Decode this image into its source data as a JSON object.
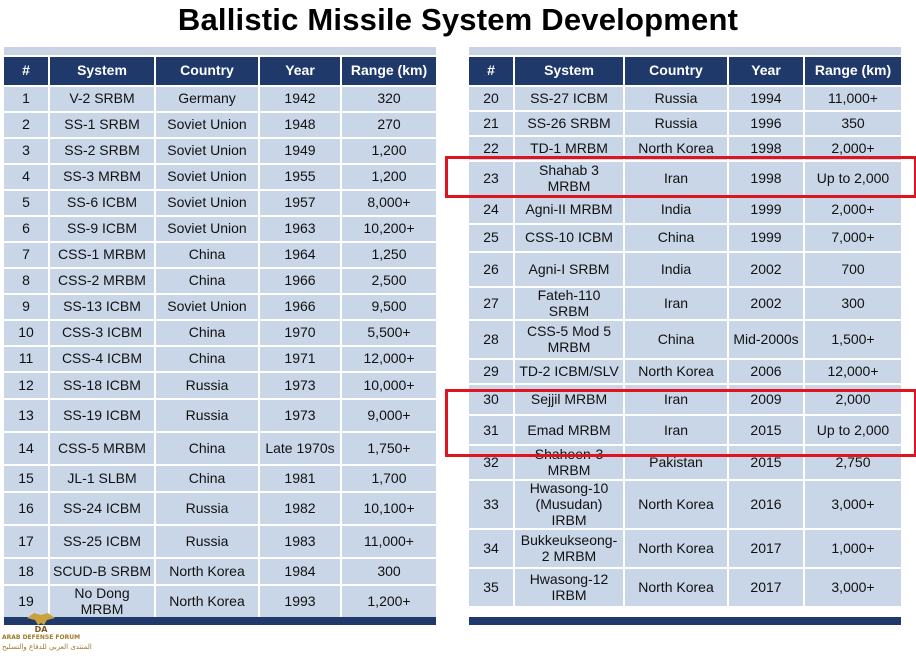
{
  "title": "Ballistic Missile System Development",
  "headers": [
    "#",
    "System",
    "Country",
    "Year",
    "Range (km)"
  ],
  "left_table": [
    [
      "1",
      "V-2 SRBM",
      "Germany",
      "1942",
      "320"
    ],
    [
      "2",
      "SS-1 SRBM",
      "Soviet Union",
      "1948",
      "270"
    ],
    [
      "3",
      "SS-2 SRBM",
      "Soviet Union",
      "1949",
      "1,200"
    ],
    [
      "4",
      "SS-3 MRBM",
      "Soviet Union",
      "1955",
      "1,200"
    ],
    [
      "5",
      "SS-6 ICBM",
      "Soviet Union",
      "1957",
      "8,000+"
    ],
    [
      "6",
      "SS-9 ICBM",
      "Soviet Union",
      "1963",
      "10,200+"
    ],
    [
      "7",
      "CSS-1 MRBM",
      "China",
      "1964",
      "1,250"
    ],
    [
      "8",
      "CSS-2 MRBM",
      "China",
      "1966",
      "2,500"
    ],
    [
      "9",
      "SS-13 ICBM",
      "Soviet Union",
      "1966",
      "9,500"
    ],
    [
      "10",
      "CSS-3 ICBM",
      "China",
      "1970",
      "5,500+"
    ],
    [
      "11",
      "CSS-4 ICBM",
      "China",
      "1971",
      "12,000+"
    ],
    [
      "12",
      "SS-18 ICBM",
      "Russia",
      "1973",
      "10,000+"
    ],
    [
      "13",
      "SS-19 ICBM",
      "Russia",
      "1973",
      "9,000+"
    ],
    [
      "14",
      "CSS-5 MRBM",
      "China",
      "Late 1970s",
      "1,750+"
    ],
    [
      "15",
      "JL-1 SLBM",
      "China",
      "1981",
      "1,700"
    ],
    [
      "16",
      "SS-24 ICBM",
      "Russia",
      "1982",
      "10,100+"
    ],
    [
      "17",
      "SS-25 ICBM",
      "Russia",
      "1983",
      "11,000+"
    ],
    [
      "18",
      "SCUD-B SRBM",
      "North Korea",
      "1984",
      "300"
    ],
    [
      "19",
      "No Dong MRBM",
      "North Korea",
      "1993",
      "1,200+"
    ]
  ],
  "right_table": [
    [
      "20",
      "SS-27 ICBM",
      "Russia",
      "1994",
      "11,000+"
    ],
    [
      "21",
      "SS-26 SRBM",
      "Russia",
      "1996",
      "350"
    ],
    [
      "22",
      "TD-1 MRBM",
      "North Korea",
      "1998",
      "2,000+"
    ],
    [
      "23",
      "Shahab 3 MRBM",
      "Iran",
      "1998",
      "Up to 2,000"
    ],
    [
      "24",
      "Agni-II MRBM",
      "India",
      "1999",
      "2,000+"
    ],
    [
      "25",
      "CSS-10 ICBM",
      "China",
      "1999",
      "7,000+"
    ],
    [
      "26",
      "Agni-I SRBM",
      "India",
      "2002",
      "700"
    ],
    [
      "27",
      "Fateh-110 SRBM",
      "Iran",
      "2002",
      "300"
    ],
    [
      "28",
      "CSS-5 Mod 5 MRBM",
      "China",
      "Mid-2000s",
      "1,500+"
    ],
    [
      "29",
      "TD-2 ICBM/SLV",
      "North Korea",
      "2006",
      "12,000+"
    ],
    [
      "30",
      "Sejjil MRBM",
      "Iran",
      "2009",
      "2,000"
    ],
    [
      "31",
      "Emad MRBM",
      "Iran",
      "2015",
      "Up to 2,000"
    ],
    [
      "32",
      "Shaheen-3 MRBM",
      "Pakistan",
      "2015",
      "2,750"
    ],
    [
      "33",
      "Hwasong-10 (Musudan) IRBM",
      "North Korea",
      "2016",
      "3,000+"
    ],
    [
      "34",
      "Bukkeukseong-2 MRBM",
      "North Korea",
      "2017",
      "1,000+"
    ],
    [
      "35",
      "Hwasong-12 IRBM",
      "North Korea",
      "2017",
      "3,000+"
    ]
  ],
  "highlight_color": "#e0141e",
  "header_color": "#1f3a6a",
  "cell_color": "#c9d6e8",
  "watermark": {
    "brand": "DA",
    "name": "ARAB DEFENSE FORUM",
    "arabic": "المنتدى العربي للدفاع والتسليح"
  }
}
